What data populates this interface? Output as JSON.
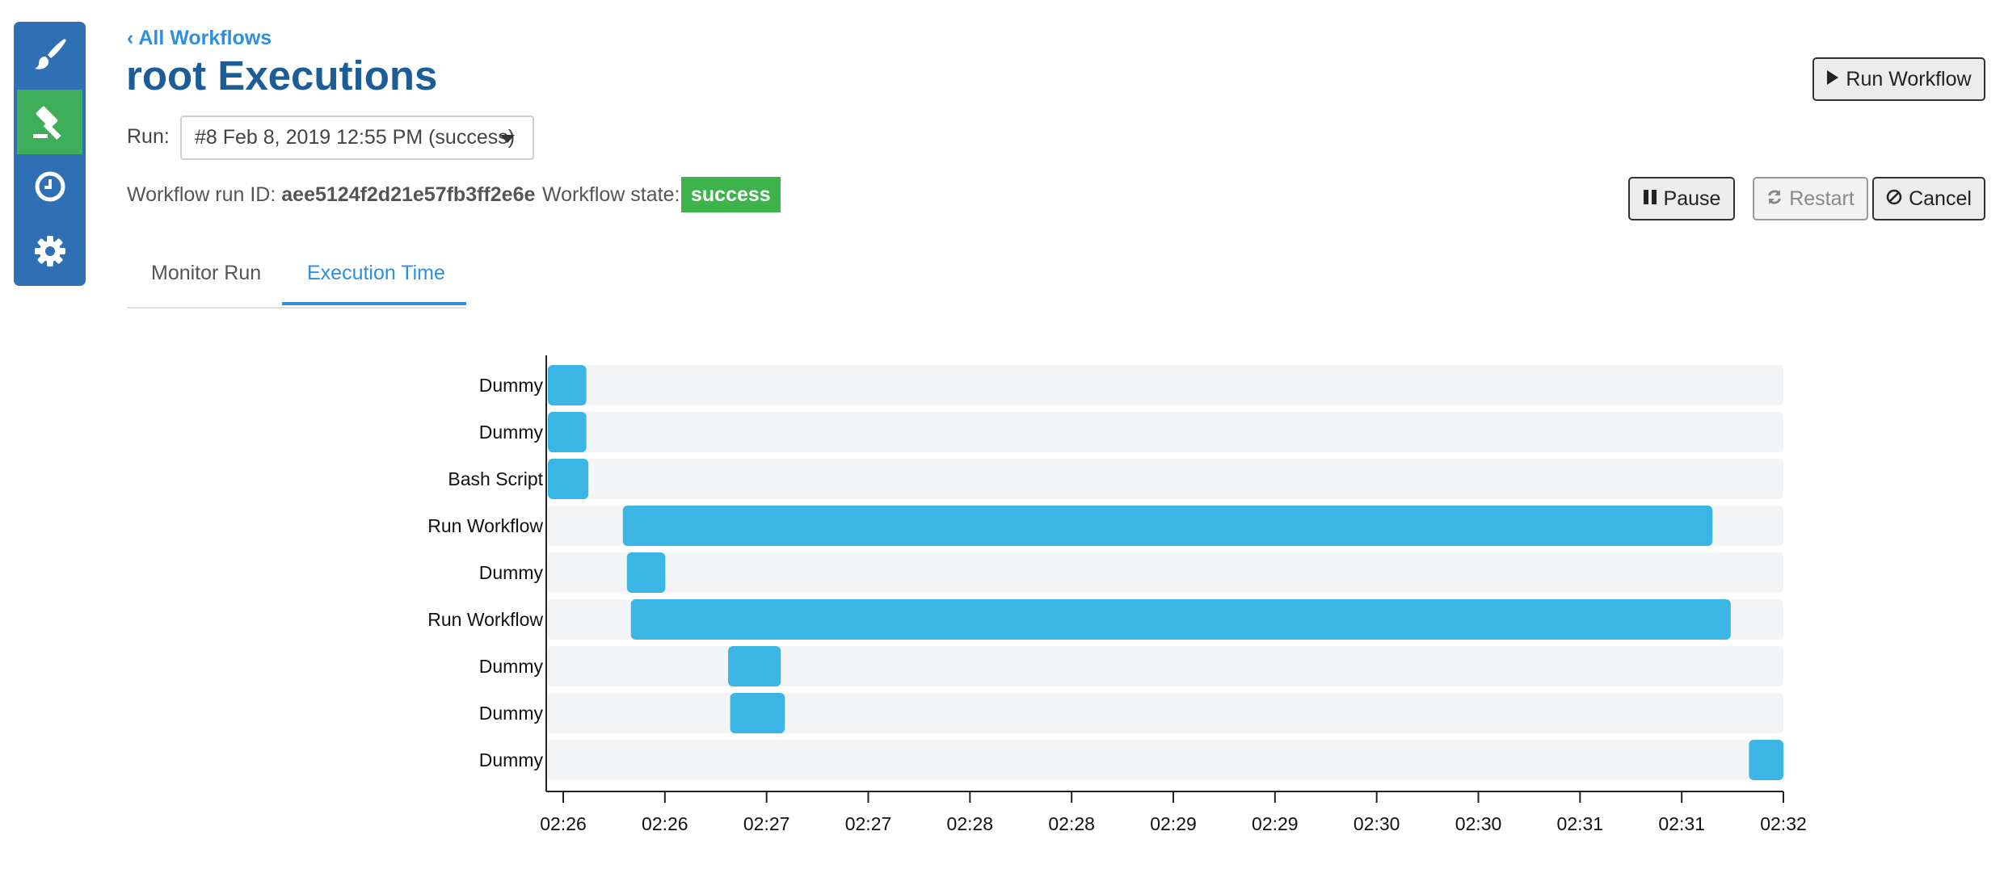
{
  "sidebar": {
    "items": [
      {
        "icon": "paintbrush-icon",
        "active": false
      },
      {
        "icon": "gavel-icon",
        "active": true
      },
      {
        "icon": "clock-icon",
        "active": false
      },
      {
        "icon": "gear-icon",
        "active": false
      }
    ]
  },
  "header": {
    "back_link": "‹ All Workflows",
    "title": "root Executions",
    "run_label": "Run:",
    "run_select_value": "#8 Feb 8, 2019 12:55 PM (success)",
    "run_id_label": "Workflow run ID:",
    "run_id_value": "aee5124f2d21e57fb3ff2e6e",
    "state_label": "Workflow state:",
    "state_value": "success"
  },
  "buttons": {
    "run_workflow": "Run Workflow",
    "pause": "Pause",
    "restart": "Restart",
    "cancel": "Cancel"
  },
  "tabs": [
    {
      "label": "Monitor Run",
      "active": false
    },
    {
      "label": "Execution Time",
      "active": true
    }
  ],
  "colors": {
    "accent": "#2e8fde",
    "title": "#1d5d97",
    "sidebar": "#2f6fb4",
    "sidebar_active": "#3fae5a",
    "success": "#3cb44b",
    "bar": "#3bb5e3",
    "track": "#f3f4f6"
  },
  "chart_data": {
    "type": "gantt",
    "x_ticks": [
      "02:26",
      "02:26",
      "02:27",
      "02:27",
      "02:28",
      "02:28",
      "02:29",
      "02:29",
      "02:30",
      "02:30",
      "02:31",
      "02:31",
      "02:32"
    ],
    "x_range_minutes_after_0226": [
      0,
      6.1
    ],
    "tasks": [
      {
        "label": "Dummy",
        "start": 0.0,
        "end": 0.19
      },
      {
        "label": "Dummy",
        "start": 0.0,
        "end": 0.19
      },
      {
        "label": "Bash Script",
        "start": 0.0,
        "end": 0.2
      },
      {
        "label": "Run Workflow",
        "start": 0.37,
        "end": 5.75
      },
      {
        "label": "Dummy",
        "start": 0.39,
        "end": 0.58
      },
      {
        "label": "Run Workflow",
        "start": 0.41,
        "end": 5.84
      },
      {
        "label": "Dummy",
        "start": 0.89,
        "end": 1.15
      },
      {
        "label": "Dummy",
        "start": 0.9,
        "end": 1.17
      },
      {
        "label": "Dummy",
        "start": 5.93,
        "end": 6.1
      }
    ]
  }
}
